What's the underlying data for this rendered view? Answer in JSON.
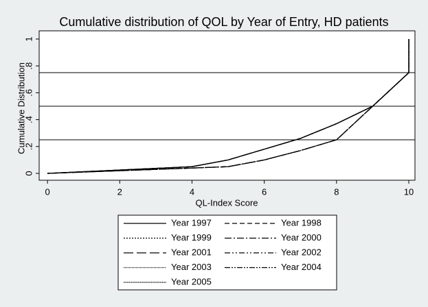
{
  "chart_data": {
    "type": "line",
    "title": "Cumulative distribution of QOL by Year of Entry, HD patients",
    "x_label": "QL-Index Score",
    "y_label": "Cumulative Distribution",
    "x": [
      0,
      2,
      4,
      5,
      6,
      7,
      8,
      9,
      10,
      10
    ],
    "series": [
      {
        "name": "Year 1997",
        "color": "#000000",
        "dash": "none",
        "values": [
          0,
          0.025,
          0.05,
          0.1,
          0.18,
          0.26,
          0.37,
          0.5,
          0.75,
          1
        ]
      },
      {
        "name": "Year 1998",
        "color": "#000000",
        "dash": "7,4",
        "values": [
          0,
          0.02,
          0.04,
          0.05,
          0.1,
          0.17,
          0.25,
          0.5,
          0.75,
          1
        ]
      },
      {
        "name": "Year 1999",
        "color": "#000000",
        "dash": "2,2",
        "values": [
          0,
          0.025,
          0.05,
          0.1,
          0.18,
          0.26,
          0.37,
          0.5,
          0.75,
          1
        ]
      },
      {
        "name": "Year 2000",
        "color": "#000000",
        "dash": "10,3,2,3",
        "values": [
          0,
          0.02,
          0.04,
          0.05,
          0.1,
          0.17,
          0.25,
          0.5,
          0.75,
          1
        ]
      },
      {
        "name": "Year 2001",
        "color": "#000000",
        "dash": "14,5",
        "values": [
          0,
          0.025,
          0.05,
          0.1,
          0.18,
          0.26,
          0.37,
          0.5,
          0.75,
          1
        ]
      },
      {
        "name": "Year 2002",
        "color": "#000000",
        "dash": "8,3,2,3,2,3",
        "values": [
          0,
          0.02,
          0.04,
          0.05,
          0.1,
          0.17,
          0.25,
          0.5,
          0.75,
          1
        ]
      },
      {
        "name": "Year 2003",
        "color": "#000000",
        "dash": "1,1",
        "values": [
          0,
          0.025,
          0.05,
          0.1,
          0.18,
          0.26,
          0.37,
          0.5,
          0.75,
          1
        ]
      },
      {
        "name": "Year 2004",
        "color": "#000000",
        "dash": "8,2,2,2,2,2",
        "values": [
          0,
          0.02,
          0.04,
          0.05,
          0.1,
          0.17,
          0.25,
          0.5,
          0.75,
          1
        ]
      },
      {
        "name": "Year 2005",
        "color": "#000000",
        "dash": "1,0.6",
        "values": [
          0,
          0.025,
          0.05,
          0.1,
          0.18,
          0.26,
          0.37,
          0.5,
          0.75,
          1
        ]
      }
    ],
    "reference_lines": [
      0.25,
      0.5,
      0.75
    ],
    "xlim": [
      -0.23,
      10.17
    ],
    "ylim": [
      -0.051,
      1.061
    ],
    "xticks": [
      0,
      2,
      4,
      6,
      8,
      10
    ],
    "yticks": [
      0,
      {
        "value": 0.2,
        "label": ".2"
      },
      {
        "value": 0.4,
        "label": ".4"
      },
      {
        "value": 0.6,
        "label": ".6"
      },
      {
        "value": 0.8,
        "label": ".8"
      },
      1
    ],
    "legend_columns": 2
  }
}
